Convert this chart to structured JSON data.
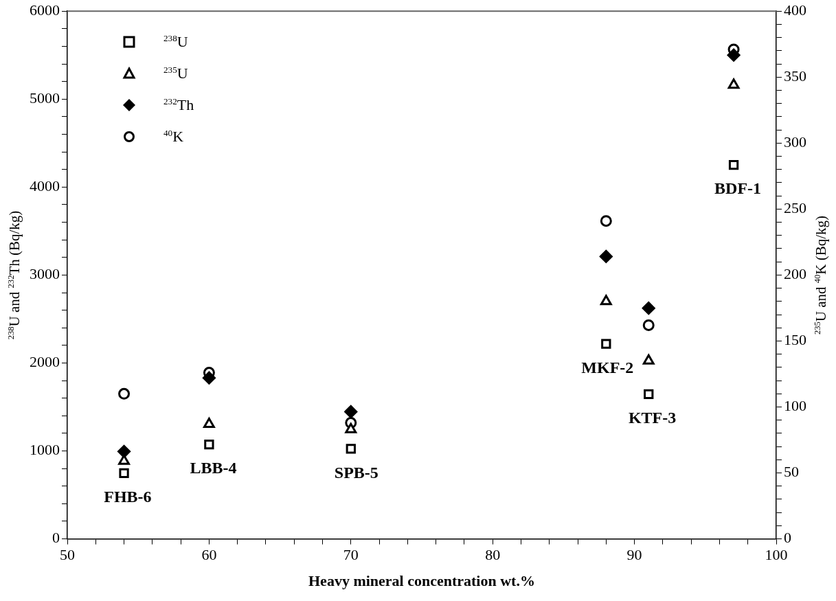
{
  "chart_data": {
    "type": "scatter",
    "xlabel": "Heavy mineral concentration wt.%",
    "ylabel": "$^{238}$U and $^{232}$Th (Bq/kg)",
    "y2label": "$^{235}$U and $^{40}$K (Bq/kg)",
    "x": [
      54,
      60,
      70,
      88,
      91,
      97
    ],
    "series": [
      {
        "name": "$^{238}$U",
        "color": "#000000",
        "marker": "square",
        "values": [
          747,
          1073,
          1025,
          2217,
          1645,
          4252
        ]
      },
      {
        "name": "$^{235}$U",
        "color": "#000000",
        "marker": "triangle",
        "axis": "y2",
        "values": [
          59,
          87,
          83,
          180,
          135,
          344
        ]
      },
      {
        "name": "$^{232}$Th",
        "color": "#000000",
        "marker": "diamond",
        "values": [
          994,
          1830,
          1446,
          3211,
          2623,
          5500
        ]
      },
      {
        "name": "$^{40}$K",
        "color": "#000000",
        "marker": "circle",
        "axis": "y2",
        "values": [
          110,
          126,
          88,
          241,
          162,
          371
        ]
      }
    ],
    "xlim": [
      50,
      100
    ],
    "xticks": [
      50,
      {
        "value": 52,
        "label": null
      },
      {
        "value": 54,
        "label": null
      },
      {
        "value": 56,
        "label": null
      },
      {
        "value": 58,
        "label": null
      },
      60,
      {
        "value": 62,
        "label": null
      },
      {
        "value": 64,
        "label": null
      },
      {
        "value": 66,
        "label": null
      },
      {
        "value": 68,
        "label": null
      },
      70,
      {
        "value": 72,
        "label": null
      },
      {
        "value": 74,
        "label": null
      },
      {
        "value": 76,
        "label": null
      },
      {
        "value": 78,
        "label": null
      },
      80,
      {
        "value": 82,
        "label": null
      },
      {
        "value": 84,
        "label": null
      },
      {
        "value": 86,
        "label": null
      },
      {
        "value": 88,
        "label": null
      },
      90,
      {
        "value": 92,
        "label": null
      },
      {
        "value": 94,
        "label": null
      },
      {
        "value": 96,
        "label": null
      },
      {
        "value": 98,
        "label": null
      },
      100
    ],
    "ylim": [
      0,
      6000
    ],
    "yticks": [
      0,
      {
        "value": 200,
        "label": null
      },
      {
        "value": 400,
        "label": null
      },
      {
        "value": 600,
        "label": null
      },
      {
        "value": 800,
        "label": null
      },
      1000,
      {
        "value": 1200,
        "label": null
      },
      {
        "value": 1400,
        "label": null
      },
      {
        "value": 1600,
        "label": null
      },
      {
        "value": 1800,
        "label": null
      },
      2000,
      {
        "value": 2200,
        "label": null
      },
      {
        "value": 2400,
        "label": null
      },
      {
        "value": 2600,
        "label": null
      },
      {
        "value": 2800,
        "label": null
      },
      3000,
      {
        "value": 3200,
        "label": null
      },
      {
        "value": 3400,
        "label": null
      },
      {
        "value": 3600,
        "label": null
      },
      {
        "value": 3800,
        "label": null
      },
      4000,
      {
        "value": 4200,
        "label": null
      },
      {
        "value": 4400,
        "label": null
      },
      {
        "value": 4600,
        "label": null
      },
      {
        "value": 4800,
        "label": null
      },
      5000,
      {
        "value": 5200,
        "label": null
      },
      {
        "value": 5400,
        "label": null
      },
      {
        "value": 5600,
        "label": null
      },
      {
        "value": 5800,
        "label": null
      },
      6000
    ],
    "y2lim": [
      0,
      400
    ],
    "y2ticks": [
      0,
      {
        "value": 10,
        "label": null
      },
      {
        "value": 20,
        "label": null
      },
      {
        "value": 30,
        "label": null
      },
      {
        "value": 40,
        "label": null
      },
      50,
      {
        "value": 60,
        "label": null
      },
      {
        "value": 70,
        "label": null
      },
      {
        "value": 80,
        "label": null
      },
      {
        "value": 90,
        "label": null
      },
      100,
      {
        "value": 110,
        "label": null
      },
      {
        "value": 120,
        "label": null
      },
      {
        "value": 130,
        "label": null
      },
      {
        "value": 140,
        "label": null
      },
      150,
      {
        "value": 160,
        "label": null
      },
      {
        "value": 170,
        "label": null
      },
      {
        "value": 180,
        "label": null
      },
      {
        "value": 190,
        "label": null
      },
      200,
      {
        "value": 210,
        "label": null
      },
      {
        "value": 220,
        "label": null
      },
      {
        "value": 230,
        "label": null
      },
      {
        "value": 240,
        "label": null
      },
      250,
      {
        "value": 260,
        "label": null
      },
      {
        "value": 270,
        "label": null
      },
      {
        "value": 280,
        "label": null
      },
      {
        "value": 290,
        "label": null
      },
      300,
      {
        "value": 310,
        "label": null
      },
      {
        "value": 320,
        "label": null
      },
      {
        "value": 330,
        "label": null
      },
      {
        "value": 340,
        "label": null
      },
      350,
      {
        "value": 360,
        "label": null
      },
      {
        "value": 370,
        "label": null
      },
      {
        "value": 380,
        "label": null
      },
      {
        "value": 390,
        "label": null
      },
      400
    ],
    "grid": false,
    "legend": "top left",
    "annotations": [
      {
        "text": "FHB-6",
        "x": 54,
        "y": 747
      },
      {
        "text": "LBB-4",
        "x": 60,
        "y": 1073
      },
      {
        "text": "SPB-5",
        "x": 70,
        "y": 1025
      },
      {
        "text": "MKF-2",
        "x": 88,
        "y": 2217
      },
      {
        "text": "KTF-3",
        "x": 91,
        "y": 1645
      },
      {
        "text": "BDF-1",
        "x": 97,
        "y": 4252
      }
    ]
  }
}
